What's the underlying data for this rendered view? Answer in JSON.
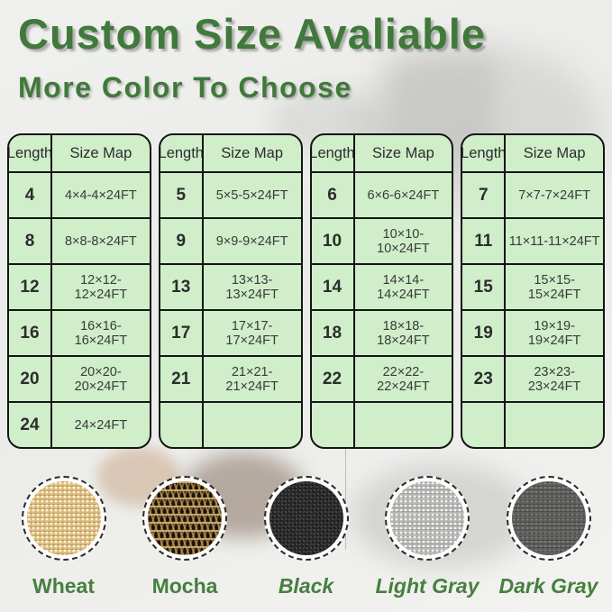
{
  "header": {
    "title": "Custom Size Avaliable",
    "subtitle": "More Color To Choose"
  },
  "tables": [
    {
      "headers": [
        "Length",
        "Size Map"
      ],
      "rows": [
        [
          "4",
          "4×4-4×24FT"
        ],
        [
          "8",
          "8×8-8×24FT"
        ],
        [
          "12",
          "12×12-12×24FT"
        ],
        [
          "16",
          "16×16-16×24FT"
        ],
        [
          "20",
          "20×20-20×24FT"
        ],
        [
          "24",
          "24×24FT"
        ]
      ]
    },
    {
      "headers": [
        "Length",
        "Size Map"
      ],
      "rows": [
        [
          "5",
          "5×5-5×24FT"
        ],
        [
          "9",
          "9×9-9×24FT"
        ],
        [
          "13",
          "13×13-13×24FT"
        ],
        [
          "17",
          "17×17-17×24FT"
        ],
        [
          "21",
          "21×21-21×24FT"
        ],
        [
          "",
          ""
        ]
      ]
    },
    {
      "headers": [
        "Length",
        "Size Map"
      ],
      "rows": [
        [
          "6",
          "6×6-6×24FT"
        ],
        [
          "10",
          "10×10-10×24FT"
        ],
        [
          "14",
          "14×14-14×24FT"
        ],
        [
          "18",
          "18×18-18×24FT"
        ],
        [
          "22",
          "22×22-22×24FT"
        ],
        [
          "",
          ""
        ]
      ]
    },
    {
      "headers": [
        "Length",
        "Size Map"
      ],
      "rows": [
        [
          "7",
          "7×7-7×24FT"
        ],
        [
          "11",
          "11×11-11×24FT"
        ],
        [
          "15",
          "15×15-15×24FT"
        ],
        [
          "19",
          "19×19-19×24FT"
        ],
        [
          "23",
          "23×23-23×24FT"
        ],
        [
          "",
          ""
        ]
      ]
    }
  ],
  "swatches": [
    {
      "label": "Wheat"
    },
    {
      "label": "Mocha"
    },
    {
      "label": "Black"
    },
    {
      "label": "Light Gray"
    },
    {
      "label": "Dark Gray"
    }
  ],
  "colors": {
    "accent_green": "#40793a",
    "label_green": "#477f3f",
    "table_fill_green": "#cfeec9",
    "table_border": "#151515",
    "wheat": "#d9ba7c",
    "mocha_tan": "#cea96a",
    "mocha_black": "#191408",
    "black": "#282828",
    "light_gray": "#b6b6b4",
    "dark_gray": "#5d5d5b"
  }
}
